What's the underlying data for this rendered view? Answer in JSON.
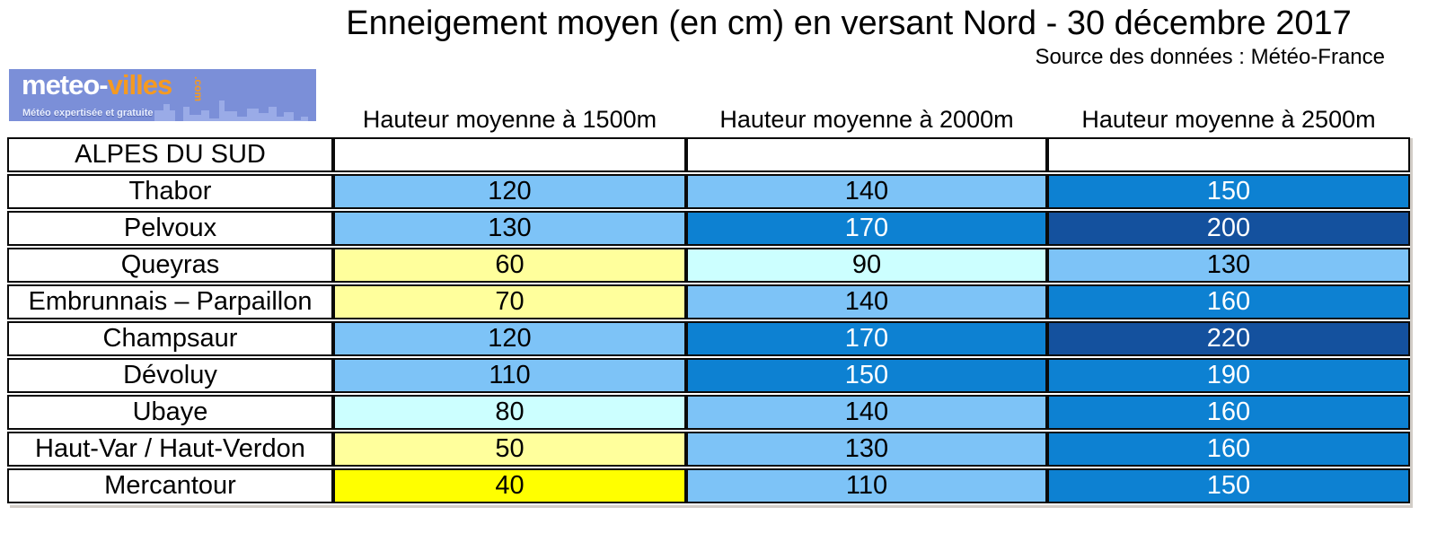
{
  "title": "Enneigement moyen (en cm) en versant Nord - 30 décembre 2017",
  "source_credit": "Source des données : Météo-France",
  "logo": {
    "brand_prefix": "meteo-",
    "brand_suffix": "villes",
    "tld": ".com",
    "tagline": "Météo expertisée et gratuite",
    "bg_color": "#7b8fd8",
    "accent_color": "#f59a21",
    "skyline_color": "#9aabe7"
  },
  "region_header": "ALPES DU SUD",
  "chart_data": {
    "type": "table",
    "title": "Enneigement moyen (en cm) en versant Nord - 30 décembre 2017",
    "source": "Source des données : Météo-France",
    "region": "ALPES DU SUD",
    "unit": "cm",
    "columns": [
      "Hauteur moyenne à 1500m",
      "Hauteur moyenne à 2000m",
      "Hauteur moyenne à 2500m"
    ],
    "rows": [
      {
        "massif": "Thabor",
        "values": [
          120,
          140,
          150
        ],
        "bands": [
          "blue_light",
          "blue_light",
          "blue_medium"
        ]
      },
      {
        "massif": "Pelvoux",
        "values": [
          130,
          170,
          200
        ],
        "bands": [
          "blue_light",
          "blue_medium",
          "blue_dark"
        ]
      },
      {
        "massif": "Queyras",
        "values": [
          60,
          90,
          130
        ],
        "bands": [
          "yellow_pale",
          "cyan_pale",
          "blue_light"
        ]
      },
      {
        "massif": "Embrunnais – Parpaillon",
        "values": [
          70,
          140,
          160
        ],
        "bands": [
          "yellow_pale",
          "blue_light",
          "blue_medium"
        ]
      },
      {
        "massif": "Champsaur",
        "values": [
          120,
          170,
          220
        ],
        "bands": [
          "blue_light",
          "blue_medium",
          "blue_dark"
        ]
      },
      {
        "massif": "Dévoluy",
        "values": [
          110,
          150,
          190
        ],
        "bands": [
          "blue_light",
          "blue_medium",
          "blue_medium"
        ]
      },
      {
        "massif": "Ubaye",
        "values": [
          80,
          140,
          160
        ],
        "bands": [
          "cyan_pale",
          "blue_light",
          "blue_medium"
        ]
      },
      {
        "massif": "Haut-Var / Haut-Verdon",
        "values": [
          50,
          130,
          160
        ],
        "bands": [
          "yellow_pale",
          "blue_light",
          "blue_medium"
        ]
      },
      {
        "massif": "Mercantour",
        "values": [
          40,
          110,
          150
        ],
        "bands": [
          "yellow_bright",
          "blue_light",
          "blue_medium"
        ]
      }
    ]
  },
  "palette": {
    "yellow_bright": "#ffff00",
    "yellow_pale": "#ffff9c",
    "cyan_pale": "#ccffff",
    "blue_light": "#7dc3f7",
    "blue_medium": "#0d81d2",
    "blue_dark": "#14519e",
    "text_dark": "#000000",
    "text_light": "#ffffff"
  },
  "light_text_bands": [
    "blue_medium",
    "blue_dark"
  ]
}
